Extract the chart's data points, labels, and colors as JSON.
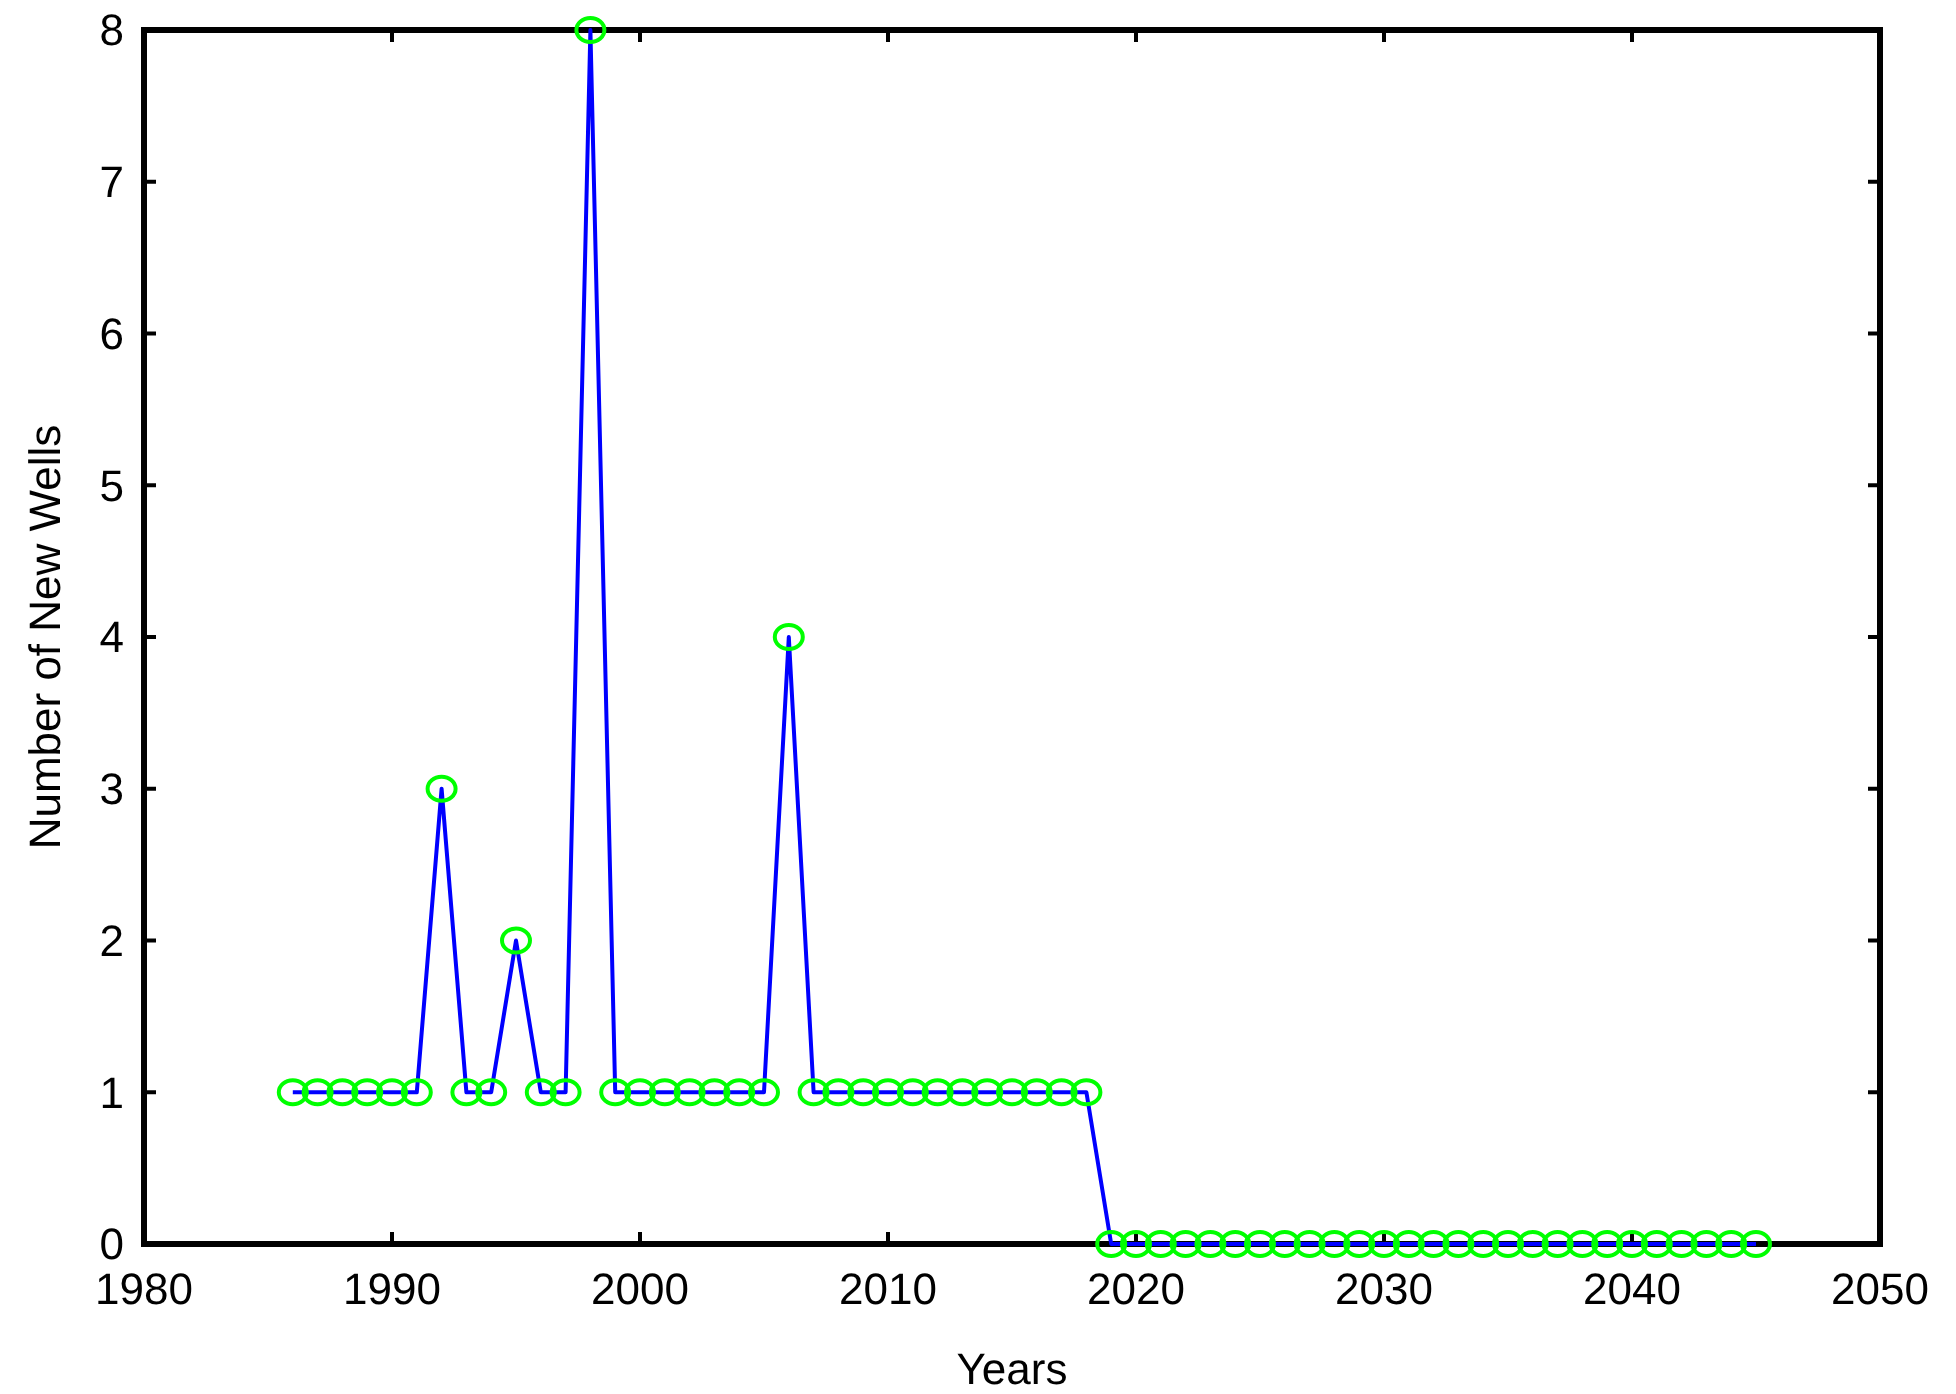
{
  "chart_data": {
    "type": "line",
    "xlabel": "Years",
    "ylabel": "Number of New Wells",
    "x": [
      1986,
      1987,
      1988,
      1989,
      1990,
      1991,
      1992,
      1993,
      1994,
      1995,
      1996,
      1997,
      1998,
      1999,
      2000,
      2001,
      2002,
      2003,
      2004,
      2005,
      2006,
      2007,
      2008,
      2009,
      2010,
      2011,
      2012,
      2013,
      2014,
      2015,
      2016,
      2017,
      2018,
      2019,
      2020,
      2021,
      2022,
      2023,
      2024,
      2025,
      2026,
      2027,
      2028,
      2029,
      2030,
      2031,
      2032,
      2033,
      2034,
      2035,
      2036,
      2037,
      2038,
      2039,
      2040,
      2041,
      2042,
      2043,
      2044,
      2045
    ],
    "series": [
      {
        "color": "#0000ff",
        "values": [
          1,
          1,
          1,
          1,
          1,
          1,
          3,
          1,
          1,
          2,
          1,
          1,
          8,
          1,
          1,
          1,
          1,
          1,
          1,
          1,
          4,
          1,
          1,
          1,
          1,
          1,
          1,
          1,
          1,
          1,
          1,
          1,
          1,
          0,
          0,
          0,
          0,
          0,
          0,
          0,
          0,
          0,
          0,
          0,
          0,
          0,
          0,
          0,
          0,
          0,
          0,
          0,
          0,
          0,
          0,
          0,
          0,
          0,
          0,
          0
        ]
      }
    ],
    "xlim": [
      1980,
      2050
    ],
    "xticks": [
      1980,
      1990,
      2000,
      2010,
      2020,
      2030,
      2040,
      2050
    ],
    "ylim": [
      0,
      8
    ],
    "yticks": [
      0,
      1,
      2,
      3,
      4,
      5,
      6,
      7,
      8
    ],
    "marker": "circle",
    "line_style": "solid"
  }
}
